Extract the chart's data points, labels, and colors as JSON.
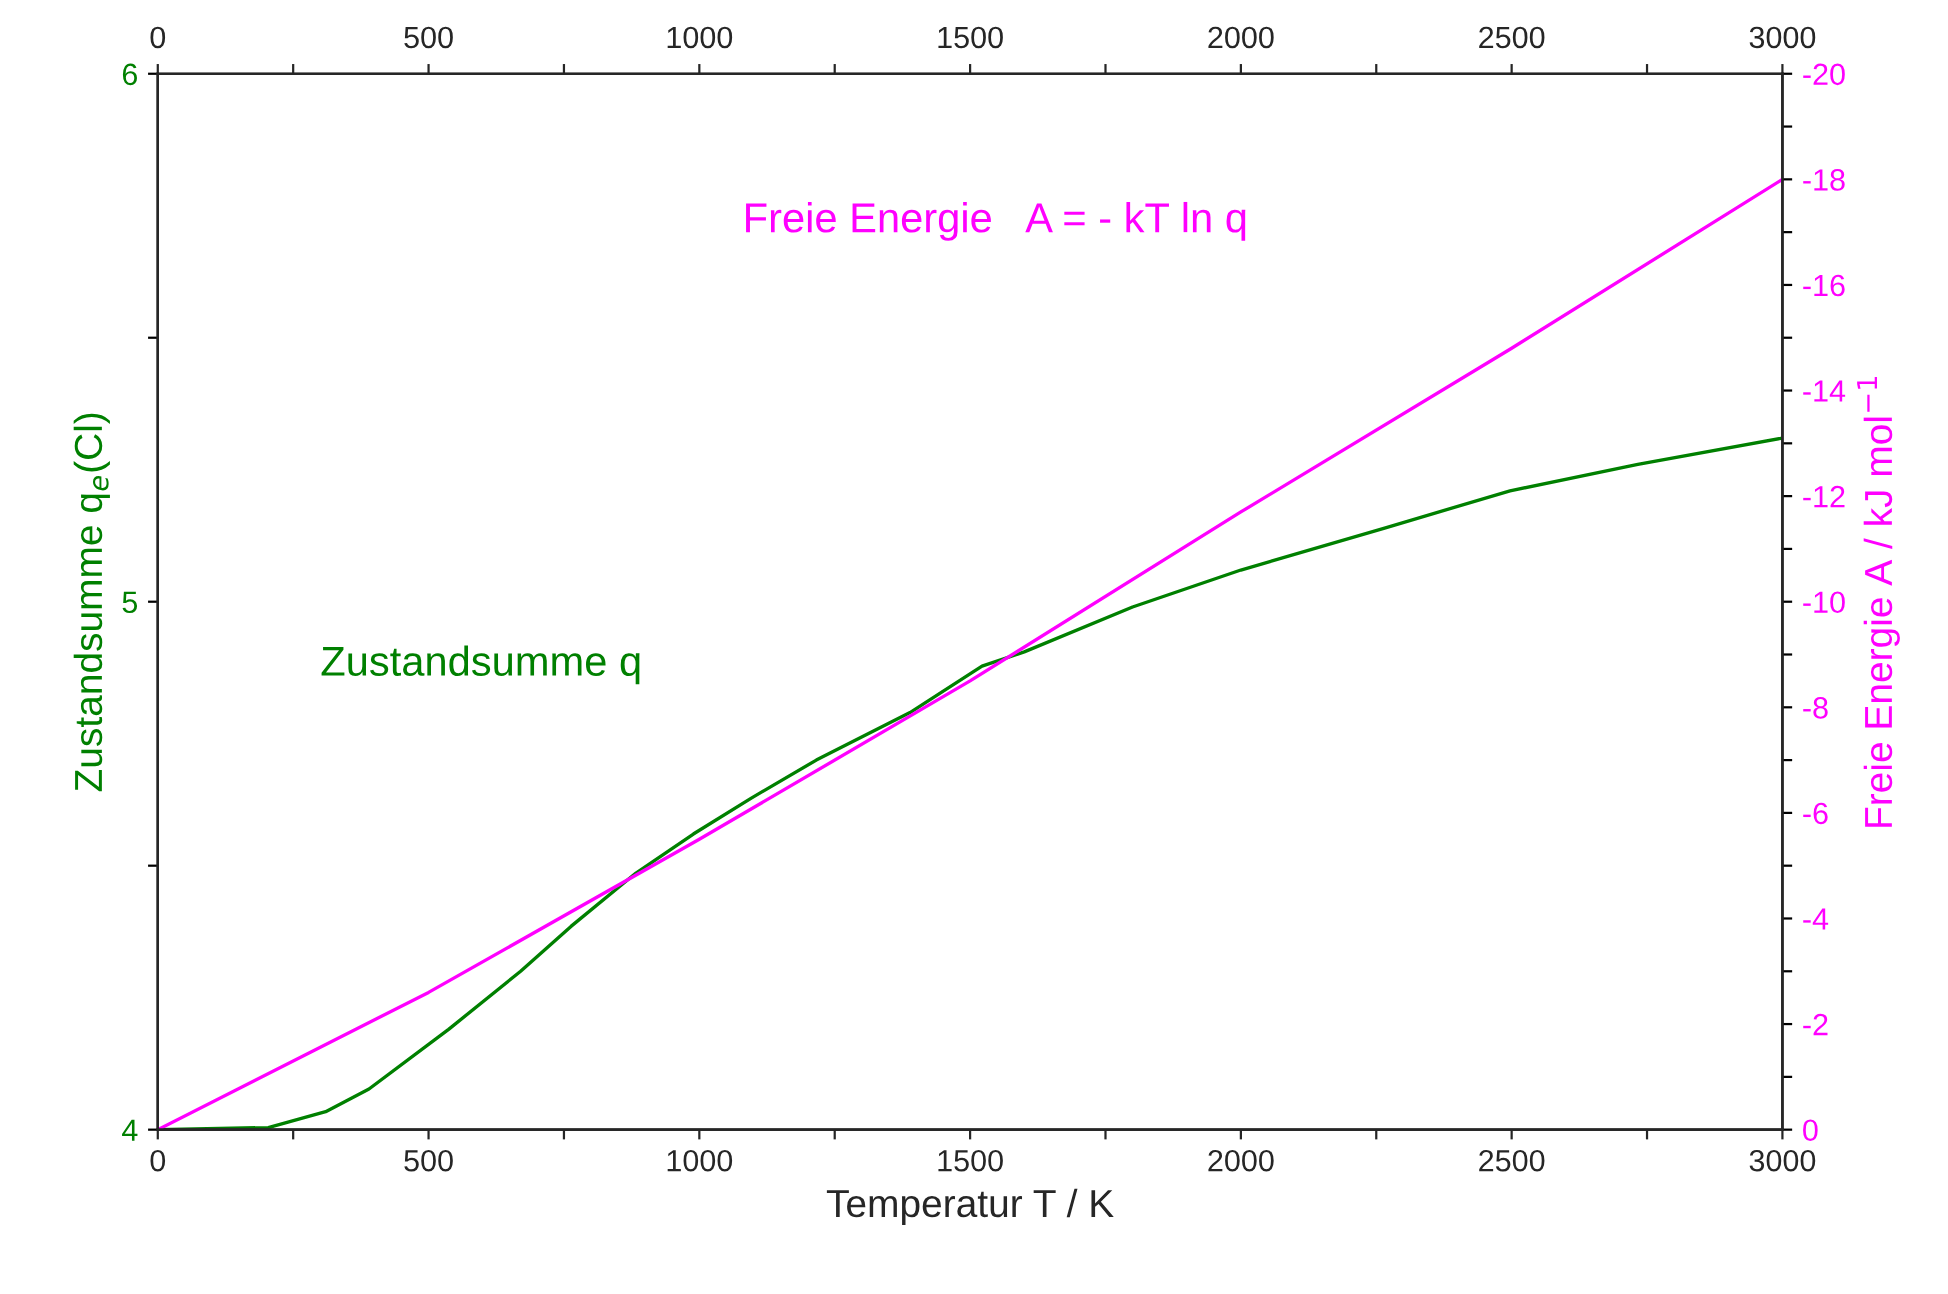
{
  "chart_data": {
    "type": "line",
    "xlabel": "Temperatur T / K",
    "ylabel": "Zustandsumme q$_{e}$(Cl)",
    "y2label": "Freie Energie A / kJ mol$^{−1}$",
    "xlim": [
      0,
      3000
    ],
    "xticks": [
      0,
      {
        "value": 250,
        "label": null
      },
      500,
      {
        "value": 750,
        "label": null
      },
      1000,
      {
        "value": 1250,
        "label": null
      },
      1500,
      {
        "value": 1750,
        "label": null
      },
      2000,
      {
        "value": 2250,
        "label": null
      },
      2500,
      {
        "value": 2750,
        "label": null
      },
      3000
    ],
    "x2lim": [
      0,
      3000
    ],
    "x2ticks": [
      0,
      {
        "value": 250,
        "label": null
      },
      500,
      {
        "value": 750,
        "label": null
      },
      1000,
      {
        "value": 1250,
        "label": null
      },
      1500,
      {
        "value": 1750,
        "label": null
      },
      2000,
      {
        "value": 2250,
        "label": null
      },
      2500,
      {
        "value": 2750,
        "label": null
      },
      3000
    ],
    "ylim": [
      4,
      6
    ],
    "yticks": [
      4,
      {
        "value": 4.5,
        "label": null
      },
      5,
      {
        "value": 5.5,
        "label": null
      },
      6
    ],
    "y2lim": [
      0,
      -20
    ],
    "y2ticks": [
      0,
      {
        "value": -1,
        "label": null
      },
      -2,
      {
        "value": -3,
        "label": null
      },
      -4,
      {
        "value": -5,
        "label": null
      },
      -6,
      {
        "value": -7,
        "label": null
      },
      -8,
      {
        "value": -9,
        "label": null
      },
      -10,
      {
        "value": -11,
        "label": null
      },
      -12,
      {
        "value": -13,
        "label": null
      },
      -14,
      {
        "value": -15,
        "label": null
      },
      -16,
      {
        "value": -17,
        "label": null
      },
      -18,
      {
        "value": -19,
        "label": null
      },
      -20
    ],
    "grid": false,
    "series": [
      {
        "name": "Zustandsumme q",
        "color": "#008000",
        "x": [
          0,
          204,
          310,
          390,
          537,
          670,
          763,
          883,
          989,
          1096,
          1216,
          1389,
          1522,
          1600,
          1800,
          2000,
          2267,
          2497,
          2733,
          3000
        ],
        "values": [
          4.0,
          4.004,
          4.034,
          4.077,
          4.19,
          4.3,
          4.385,
          4.486,
          4.56,
          4.628,
          4.7,
          4.79,
          4.878,
          4.905,
          4.99,
          5.06,
          5.14,
          5.21,
          5.26,
          5.31
        ]
      },
      {
        "name": "Freie Energie   A = - kT ln q",
        "color": "#ff00ff",
        "axis": "y2",
        "x": [
          0,
          500,
          1000,
          1500,
          2000,
          2500,
          3000
        ],
        "values": [
          0,
          -2.6,
          -5.5,
          -8.5,
          -11.7,
          -14.8,
          -18.0
        ]
      }
    ]
  }
}
